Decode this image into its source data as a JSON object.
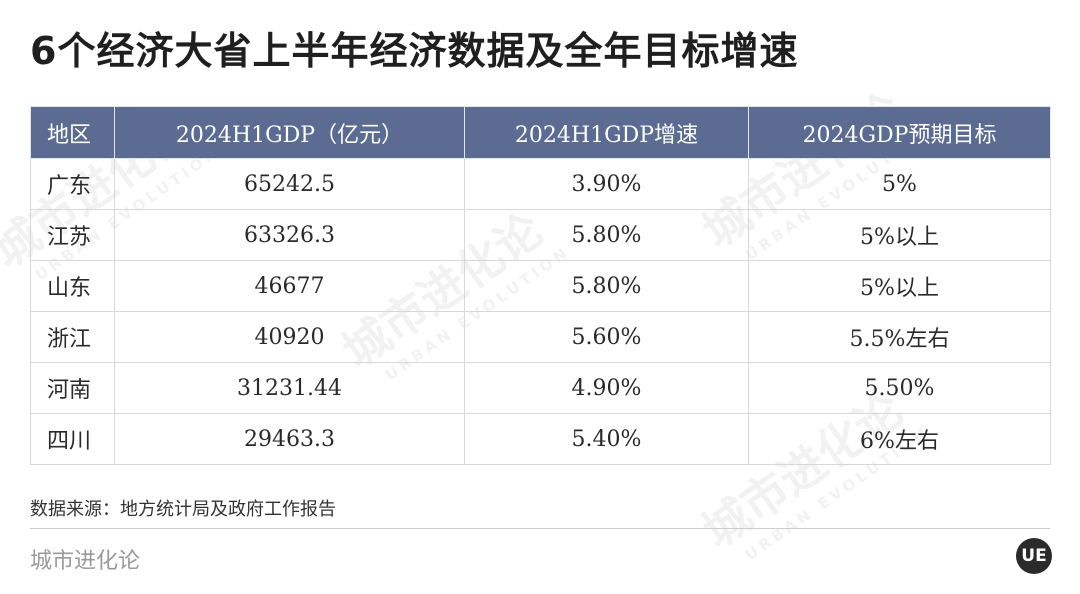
{
  "title": "6个经济大省上半年经济数据及全年目标增速",
  "table": {
    "headers": [
      "地区",
      "2024H1GDP（亿元）",
      "2024H1GDP增速",
      "2024GDP预期目标"
    ],
    "rows": [
      [
        "广东",
        "65242.5",
        "3.90%",
        "5%"
      ],
      [
        "江苏",
        "63326.3",
        "5.80%",
        "5%以上"
      ],
      [
        "山东",
        "46677",
        "5.80%",
        "5%以上"
      ],
      [
        "浙江",
        "40920",
        "5.60%",
        "5.5%左右"
      ],
      [
        "河南",
        "31231.44",
        "4.90%",
        "5.50%"
      ],
      [
        "四川",
        "29463.3",
        "5.40%",
        "6%左右"
      ]
    ]
  },
  "source": "数据来源：地方统计局及政府工作报告",
  "footer": {
    "brand": "城市进化论",
    "logo_text": "UE"
  },
  "watermark": {
    "text": "城市进化论",
    "subtext": "URBAN EVOLUTION"
  },
  "colors": {
    "header_bg": "#5b6b92",
    "header_text": "#ffffff"
  }
}
